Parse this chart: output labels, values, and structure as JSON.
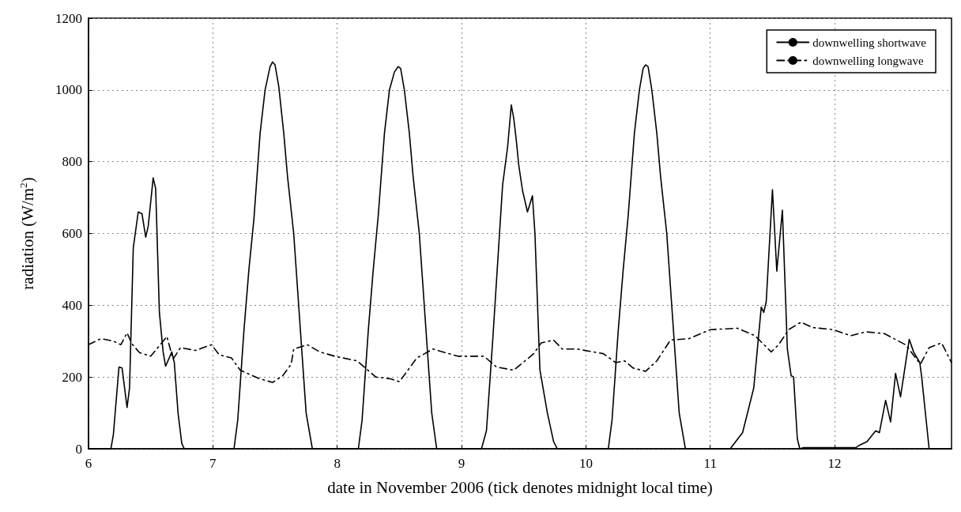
{
  "chart_data": {
    "type": "line",
    "xlabel": "date in November 2006 (tick denotes midnight local time)",
    "ylabel": "radiation (W/m$^{2}$)",
    "xlim": [
      6,
      12.94
    ],
    "xticks": [
      6,
      7,
      8,
      9,
      10,
      11,
      12
    ],
    "ylim": [
      0,
      1200
    ],
    "yticks": [
      0,
      200,
      400,
      600,
      800,
      1000,
      1200
    ],
    "grid": true,
    "legend": "top right",
    "marker": "none",
    "series": [
      {
        "name": "downwelling shortwave",
        "color": "#000000",
        "line_style": "solid",
        "x": [
          6.0,
          6.18,
          6.2,
          6.245,
          6.27,
          6.31,
          6.33,
          6.36,
          6.4,
          6.43,
          6.46,
          6.48,
          6.52,
          6.54,
          6.57,
          6.6,
          6.62,
          6.67,
          6.69,
          6.72,
          6.75,
          6.77,
          7.17,
          7.2,
          7.25,
          7.29,
          7.33,
          7.38,
          7.42,
          7.46,
          7.48,
          7.5,
          7.53,
          7.57,
          7.6,
          7.65,
          7.71,
          7.75,
          7.8,
          8.17,
          8.2,
          8.25,
          8.29,
          8.33,
          8.38,
          8.42,
          8.46,
          8.49,
          8.51,
          8.54,
          8.58,
          8.61,
          8.66,
          8.72,
          8.76,
          8.8,
          9.16,
          9.2,
          9.25,
          9.33,
          9.37,
          9.4,
          9.42,
          9.44,
          9.46,
          9.49,
          9.53,
          9.57,
          9.59,
          9.63,
          9.66,
          9.69,
          9.74,
          9.77,
          10.18,
          10.21,
          10.26,
          10.3,
          10.34,
          10.39,
          10.43,
          10.46,
          10.48,
          10.5,
          10.53,
          10.57,
          10.6,
          10.65,
          10.71,
          10.75,
          10.8,
          11.16,
          11.26,
          11.35,
          11.41,
          11.43,
          11.45,
          11.5,
          11.535,
          11.58,
          11.62,
          11.65,
          11.67,
          11.7,
          11.72,
          11.75,
          12.17,
          12.2,
          12.26,
          12.33,
          12.36,
          12.41,
          12.45,
          12.49,
          12.53,
          12.6,
          12.635,
          12.685,
          12.7,
          12.76,
          12.94
        ],
        "values": [
          0,
          0,
          40,
          228,
          225,
          115,
          170,
          560,
          660,
          655,
          590,
          620,
          755,
          725,
          380,
          270,
          230,
          270,
          240,
          100,
          15,
          0,
          0,
          80,
          330,
          500,
          640,
          880,
          1000,
          1065,
          1078,
          1070,
          1010,
          880,
          760,
          600,
          300,
          100,
          0,
          0,
          80,
          330,
          500,
          650,
          880,
          1000,
          1050,
          1065,
          1060,
          1000,
          880,
          760,
          600,
          300,
          100,
          0,
          0,
          50,
          300,
          735,
          840,
          958,
          920,
          860,
          790,
          720,
          660,
          705,
          600,
          220,
          160,
          100,
          20,
          0,
          0,
          80,
          330,
          500,
          650,
          880,
          1000,
          1060,
          1070,
          1065,
          1000,
          880,
          760,
          600,
          300,
          100,
          0,
          0,
          45,
          170,
          395,
          380,
          410,
          722,
          495,
          665,
          278,
          204,
          200,
          28,
          0,
          3,
          3,
          10,
          20,
          50,
          45,
          135,
          75,
          210,
          145,
          305,
          270,
          240,
          200,
          0,
          0
        ]
      },
      {
        "name": "downwelling longwave",
        "color": "#000000",
        "line_style": "dashed",
        "x": [
          6.0,
          6.1,
          6.2,
          6.26,
          6.31,
          6.35,
          6.41,
          6.5,
          6.57,
          6.63,
          6.68,
          6.74,
          6.86,
          6.99,
          7.05,
          7.15,
          7.22,
          7.37,
          7.48,
          7.56,
          7.63,
          7.65,
          7.76,
          7.86,
          7.98,
          8.16,
          8.31,
          8.43,
          8.5,
          8.64,
          8.77,
          8.97,
          9.18,
          9.28,
          9.42,
          9.58,
          9.64,
          9.74,
          9.81,
          9.93,
          10.14,
          10.24,
          10.31,
          10.38,
          10.48,
          10.57,
          10.68,
          10.83,
          11.0,
          11.22,
          11.36,
          11.49,
          11.55,
          11.63,
          11.73,
          11.82,
          11.99,
          12.13,
          12.25,
          12.4,
          12.57,
          12.69,
          12.76,
          12.86,
          12.94
        ],
        "values": [
          290,
          307,
          300,
          290,
          323,
          292,
          268,
          258,
          287,
          313,
          250,
          282,
          274,
          290,
          262,
          253,
          219,
          196,
          185,
          203,
          236,
          278,
          290,
          270,
          258,
          245,
          200,
          195,
          187,
          253,
          278,
          258,
          258,
          228,
          219,
          265,
          295,
          303,
          278,
          278,
          265,
          240,
          245,
          225,
          216,
          245,
          303,
          307,
          332,
          336,
          315,
          270,
          290,
          332,
          353,
          338,
          332,
          315,
          326,
          321,
          290,
          236,
          282,
          295,
          240
        ]
      }
    ]
  }
}
